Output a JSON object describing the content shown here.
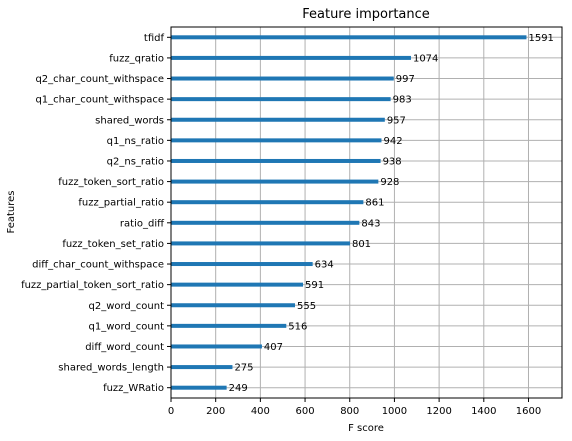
{
  "chart_data": {
    "type": "bar",
    "orientation": "horizontal",
    "title": "Feature importance",
    "xlabel": "F score",
    "ylabel": "Features",
    "xlim": [
      0,
      1750
    ],
    "xticks": [
      0,
      200,
      400,
      600,
      800,
      1000,
      1200,
      1400,
      1600
    ],
    "grid": true,
    "bar_color": "#1f77b4",
    "categories": [
      "tfidf",
      "fuzz_qratio",
      "q2_char_count_withspace",
      "q1_char_count_withspace",
      "shared_words",
      "q1_ns_ratio",
      "q2_ns_ratio",
      "fuzz_token_sort_ratio",
      "fuzz_partial_ratio",
      "ratio_diff",
      "fuzz_token_set_ratio",
      "diff_char_count_withspace",
      "fuzz_partial_token_sort_ratio",
      "q2_word_count",
      "q1_word_count",
      "diff_word_count",
      "shared_words_length",
      "fuzz_WRatio"
    ],
    "values": [
      1591,
      1074,
      997,
      983,
      957,
      942,
      938,
      928,
      861,
      843,
      801,
      634,
      591,
      555,
      516,
      407,
      275,
      249
    ]
  }
}
